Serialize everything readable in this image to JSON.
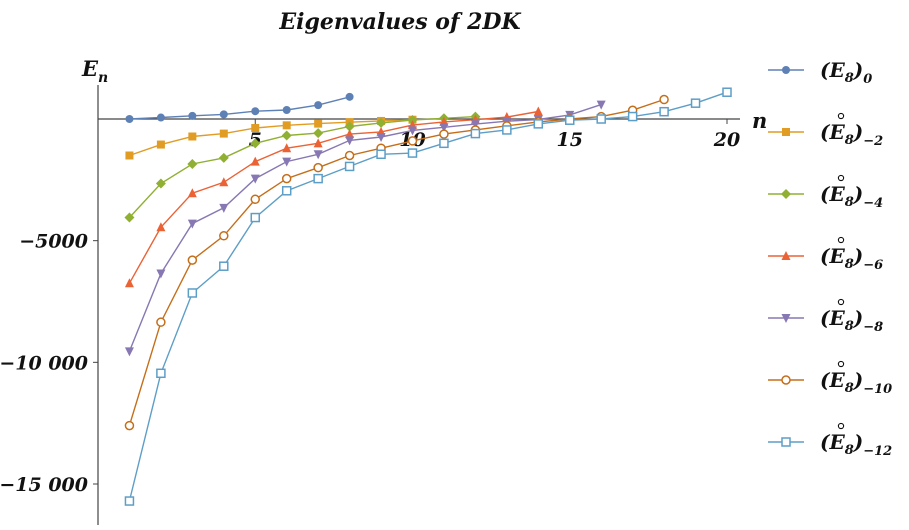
{
  "chart_data": {
    "type": "line",
    "title": "Eigenvalues of 2DK",
    "xlabel": "n",
    "ylabel": "E",
    "ylabel_sub": "n",
    "xlim": [
      0,
      20.6
    ],
    "ylim": [
      -15800,
      1500
    ],
    "xticks": [
      5,
      10,
      15,
      20
    ],
    "yticks": [
      -5000,
      -10000,
      -15000
    ],
    "xtick_labels": [
      "5",
      "10",
      "15",
      "20"
    ],
    "ytick_labels": [
      "−5000",
      "−10 000",
      "−15 000"
    ],
    "grid": false,
    "legend_position": "right",
    "series": [
      {
        "name": "(E8)0",
        "legend": {
          "base": "(E",
          "sub1": "8",
          "close": ")",
          "sub2": "0",
          "ring": false
        },
        "color": "#5e81b5",
        "marker": "circle-filled",
        "x": [
          1,
          2,
          3,
          4,
          5,
          6,
          7,
          8
        ],
        "y": [
          0,
          60,
          130,
          190,
          320,
          370,
          570,
          910
        ]
      },
      {
        "name": "(E8)-2",
        "legend": {
          "base": "(E",
          "sub1": "8",
          "close": ")",
          "sub2": "−2",
          "ring": true
        },
        "color": "#e19c24",
        "marker": "square-filled",
        "x": [
          1,
          2,
          3,
          4,
          5,
          6,
          7,
          8,
          9,
          10
        ],
        "y": [
          -1500,
          -1050,
          -720,
          -600,
          -370,
          -260,
          -190,
          -130,
          -80,
          -30
        ]
      },
      {
        "name": "(E8)-4",
        "legend": {
          "base": "(E",
          "sub1": "8",
          "close": ")",
          "sub2": "−4",
          "ring": true
        },
        "color": "#8fb032",
        "marker": "diamond-filled",
        "x": [
          1,
          2,
          3,
          4,
          5,
          6,
          7,
          8,
          9,
          10,
          11,
          12
        ],
        "y": [
          -4050,
          -2650,
          -1850,
          -1600,
          -1000,
          -680,
          -580,
          -310,
          -160,
          -40,
          30,
          100
        ]
      },
      {
        "name": "(E8)-6",
        "legend": {
          "base": "(E",
          "sub1": "8",
          "close": ")",
          "sub2": "−6",
          "ring": true
        },
        "color": "#eb6235",
        "marker": "triangle-up-filled",
        "x": [
          1,
          2,
          3,
          4,
          5,
          6,
          7,
          8,
          9,
          10,
          11,
          12,
          13,
          14
        ],
        "y": [
          -6750,
          -4450,
          -3050,
          -2600,
          -1750,
          -1200,
          -1000,
          -620,
          -530,
          -250,
          -120,
          -30,
          80,
          310
        ]
      },
      {
        "name": "(E8)-8",
        "legend": {
          "base": "(E",
          "sub1": "8",
          "close": ")",
          "sub2": "−8",
          "ring": true
        },
        "color": "#8778b3",
        "marker": "triangle-down-filled",
        "x": [
          1,
          2,
          3,
          4,
          5,
          6,
          7,
          8,
          9,
          10,
          11,
          12,
          13,
          14,
          15,
          16
        ],
        "y": [
          -9550,
          -6350,
          -4300,
          -3650,
          -2450,
          -1750,
          -1450,
          -880,
          -740,
          -470,
          -340,
          -210,
          -90,
          -20,
          170,
          590
        ]
      },
      {
        "name": "(E8)-10",
        "legend": {
          "base": "(E",
          "sub1": "8",
          "close": ")",
          "sub2": "−10",
          "ring": true
        },
        "color": "#c56e1a",
        "marker": "circle-open",
        "x": [
          1,
          2,
          3,
          4,
          5,
          6,
          7,
          8,
          9,
          10,
          11,
          12,
          13,
          14,
          15,
          16,
          17,
          18
        ],
        "y": [
          -12600,
          -8350,
          -5800,
          -4800,
          -3300,
          -2450,
          -2000,
          -1500,
          -1200,
          -900,
          -620,
          -450,
          -280,
          -120,
          0,
          100,
          360,
          800
        ]
      },
      {
        "name": "(E8)-12",
        "legend": {
          "base": "(E",
          "sub1": "8",
          "close": ")",
          "sub2": "−12",
          "ring": true
        },
        "color": "#5d9ec7",
        "marker": "square-open",
        "x": [
          1,
          2,
          3,
          4,
          5,
          6,
          7,
          8,
          9,
          10,
          11,
          12,
          13,
          14,
          15,
          16,
          17,
          18,
          19,
          20
        ],
        "y": [
          -15700,
          -10450,
          -7150,
          -6050,
          -4050,
          -2950,
          -2450,
          -1950,
          -1450,
          -1400,
          -1000,
          -600,
          -450,
          -200,
          -50,
          0,
          100,
          300,
          650,
          1100
        ]
      }
    ]
  }
}
